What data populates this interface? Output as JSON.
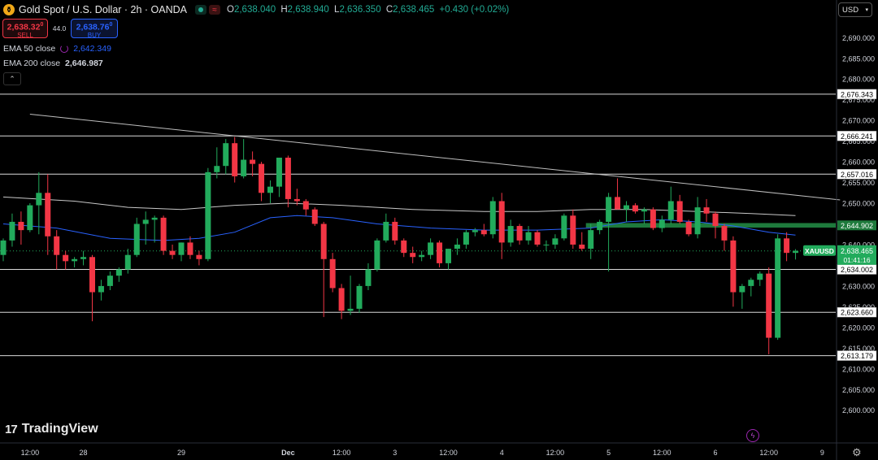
{
  "header": {
    "symbol_title": "Gold Spot / U.S. Dollar · 2h · OANDA",
    "ohlc": [
      {
        "k": "O",
        "v": "2,638.040"
      },
      {
        "k": "H",
        "v": "2,638.940"
      },
      {
        "k": "L",
        "v": "2,636.350"
      },
      {
        "k": "C",
        "v": "2,638.465"
      }
    ],
    "change": "+0.430 (+0.02%)"
  },
  "trade": {
    "sell_price": "2,638.32",
    "sell_sup": "0",
    "sell_label": "SELL",
    "spread": "44.0",
    "buy_price": "2,638.76",
    "buy_sup": "0",
    "buy_label": "BUY"
  },
  "indicators": {
    "ema50_label": "EMA 50 close",
    "ema50_value": "2,642.349",
    "ema200_label": "EMA 200 close",
    "ema200_value": "2,646.987"
  },
  "currency_button": "USD",
  "brand": "TradingView",
  "colors": {
    "up": "#22ab5c",
    "down": "#f23645",
    "ema50": "#2962ff",
    "ema200": "#c8c8c8",
    "resistance_zone": "#1e7a3c",
    "price_tag": "#22ab5c"
  },
  "chart_data": {
    "type": "candlestick",
    "title": "Gold Spot / U.S. Dollar · 2h · OANDA",
    "ylim": [
      2597,
      2693
    ],
    "y_ticks": [
      2600,
      2605,
      2610,
      2615,
      2620,
      2625,
      2630,
      2635,
      2640,
      2645,
      2650,
      2655,
      2660,
      2665,
      2670,
      2675,
      2680,
      2685,
      2690
    ],
    "x_ticks": [
      {
        "label": "12:00",
        "bar": 3
      },
      {
        "label": "28",
        "bar": 9
      },
      {
        "label": "29",
        "bar": 20
      },
      {
        "label": "Dec",
        "bar": 32
      },
      {
        "label": "12:00",
        "bar": 38
      },
      {
        "label": "3",
        "bar": 44
      },
      {
        "label": "12:00",
        "bar": 50
      },
      {
        "label": "4",
        "bar": 56
      },
      {
        "label": "12:00",
        "bar": 62
      },
      {
        "label": "5",
        "bar": 68
      },
      {
        "label": "12:00",
        "bar": 74
      },
      {
        "label": "6",
        "bar": 80
      },
      {
        "label": "12:00",
        "bar": 86
      },
      {
        "label": "9",
        "bar": 92
      }
    ],
    "candles": [
      {
        "o": 2637.5,
        "h": 2641.5,
        "l": 2636.0,
        "c": 2641.0
      },
      {
        "o": 2641.0,
        "h": 2647.5,
        "l": 2639.5,
        "c": 2645.5
      },
      {
        "o": 2645.5,
        "h": 2648.0,
        "l": 2640.0,
        "c": 2643.5
      },
      {
        "o": 2643.5,
        "h": 2650.0,
        "l": 2643.0,
        "c": 2649.5
      },
      {
        "o": 2649.5,
        "h": 2657.5,
        "l": 2642.5,
        "c": 2652.5
      },
      {
        "o": 2652.5,
        "h": 2657.0,
        "l": 2637.5,
        "c": 2642.0
      },
      {
        "o": 2642.0,
        "h": 2643.5,
        "l": 2634.0,
        "c": 2637.5
      },
      {
        "o": 2637.5,
        "h": 2638.5,
        "l": 2634.0,
        "c": 2636.0
      },
      {
        "o": 2636.0,
        "h": 2637.0,
        "l": 2634.5,
        "c": 2636.5
      },
      {
        "o": 2636.5,
        "h": 2638.5,
        "l": 2635.0,
        "c": 2637.0
      },
      {
        "o": 2637.0,
        "h": 2637.5,
        "l": 2621.5,
        "c": 2628.5
      },
      {
        "o": 2628.5,
        "h": 2631.5,
        "l": 2626.5,
        "c": 2630.0
      },
      {
        "o": 2630.0,
        "h": 2633.5,
        "l": 2629.0,
        "c": 2632.5
      },
      {
        "o": 2632.5,
        "h": 2634.5,
        "l": 2631.0,
        "c": 2634.0
      },
      {
        "o": 2634.0,
        "h": 2639.0,
        "l": 2633.0,
        "c": 2637.5
      },
      {
        "o": 2637.5,
        "h": 2646.5,
        "l": 2637.0,
        "c": 2645.0
      },
      {
        "o": 2645.0,
        "h": 2648.0,
        "l": 2640.0,
        "c": 2646.0
      },
      {
        "o": 2646.0,
        "h": 2647.0,
        "l": 2640.5,
        "c": 2646.5
      },
      {
        "o": 2646.5,
        "h": 2647.0,
        "l": 2637.5,
        "c": 2638.5
      },
      {
        "o": 2638.5,
        "h": 2640.0,
        "l": 2636.5,
        "c": 2637.5
      },
      {
        "o": 2637.5,
        "h": 2640.5,
        "l": 2636.0,
        "c": 2640.5
      },
      {
        "o": 2640.5,
        "h": 2642.0,
        "l": 2636.5,
        "c": 2637.5
      },
      {
        "o": 2637.5,
        "h": 2638.5,
        "l": 2635.0,
        "c": 2636.5
      },
      {
        "o": 2636.5,
        "h": 2658.5,
        "l": 2636.0,
        "c": 2657.5
      },
      {
        "o": 2657.5,
        "h": 2663.5,
        "l": 2656.0,
        "c": 2659.0
      },
      {
        "o": 2659.0,
        "h": 2665.5,
        "l": 2657.0,
        "c": 2664.5
      },
      {
        "o": 2664.5,
        "h": 2666.0,
        "l": 2655.0,
        "c": 2656.5
      },
      {
        "o": 2656.5,
        "h": 2665.5,
        "l": 2656.0,
        "c": 2660.5
      },
      {
        "o": 2660.5,
        "h": 2662.5,
        "l": 2656.5,
        "c": 2659.5
      },
      {
        "o": 2659.5,
        "h": 2660.0,
        "l": 2650.5,
        "c": 2652.5
      },
      {
        "o": 2652.5,
        "h": 2655.5,
        "l": 2650.0,
        "c": 2654.0
      },
      {
        "o": 2654.0,
        "h": 2661.0,
        "l": 2651.5,
        "c": 2661.0
      },
      {
        "o": 2661.0,
        "h": 2661.5,
        "l": 2649.0,
        "c": 2651.0
      },
      {
        "o": 2651.0,
        "h": 2653.5,
        "l": 2649.5,
        "c": 2650.5
      },
      {
        "o": 2650.5,
        "h": 2651.0,
        "l": 2647.0,
        "c": 2648.5
      },
      {
        "o": 2648.5,
        "h": 2649.0,
        "l": 2644.5,
        "c": 2645.0
      },
      {
        "o": 2645.0,
        "h": 2645.5,
        "l": 2622.5,
        "c": 2636.5
      },
      {
        "o": 2636.5,
        "h": 2638.0,
        "l": 2628.5,
        "c": 2629.5
      },
      {
        "o": 2629.5,
        "h": 2630.5,
        "l": 2622.0,
        "c": 2624.0
      },
      {
        "o": 2624.0,
        "h": 2632.5,
        "l": 2623.0,
        "c": 2624.5
      },
      {
        "o": 2624.5,
        "h": 2630.5,
        "l": 2623.5,
        "c": 2630.0
      },
      {
        "o": 2630.0,
        "h": 2635.5,
        "l": 2629.0,
        "c": 2634.0
      },
      {
        "o": 2634.0,
        "h": 2641.5,
        "l": 2633.5,
        "c": 2641.0
      },
      {
        "o": 2641.0,
        "h": 2647.5,
        "l": 2640.5,
        "c": 2645.5
      },
      {
        "o": 2645.5,
        "h": 2646.5,
        "l": 2640.0,
        "c": 2641.0
      },
      {
        "o": 2641.0,
        "h": 2641.5,
        "l": 2637.0,
        "c": 2638.0
      },
      {
        "o": 2638.0,
        "h": 2639.5,
        "l": 2635.5,
        "c": 2637.0
      },
      {
        "o": 2637.0,
        "h": 2638.5,
        "l": 2636.0,
        "c": 2637.5
      },
      {
        "o": 2637.5,
        "h": 2641.5,
        "l": 2636.5,
        "c": 2640.5
      },
      {
        "o": 2640.5,
        "h": 2641.0,
        "l": 2634.5,
        "c": 2635.5
      },
      {
        "o": 2635.5,
        "h": 2639.0,
        "l": 2634.0,
        "c": 2639.0
      },
      {
        "o": 2639.0,
        "h": 2641.5,
        "l": 2637.5,
        "c": 2640.0
      },
      {
        "o": 2640.0,
        "h": 2643.5,
        "l": 2639.0,
        "c": 2643.0
      },
      {
        "o": 2643.0,
        "h": 2644.0,
        "l": 2642.0,
        "c": 2643.5
      },
      {
        "o": 2643.5,
        "h": 2645.0,
        "l": 2642.0,
        "c": 2642.5
      },
      {
        "o": 2642.5,
        "h": 2651.5,
        "l": 2641.5,
        "c": 2650.5
      },
      {
        "o": 2650.5,
        "h": 2652.5,
        "l": 2636.5,
        "c": 2640.5
      },
      {
        "o": 2640.5,
        "h": 2646.0,
        "l": 2639.5,
        "c": 2644.5
      },
      {
        "o": 2644.5,
        "h": 2645.0,
        "l": 2640.0,
        "c": 2641.0
      },
      {
        "o": 2641.0,
        "h": 2644.5,
        "l": 2640.0,
        "c": 2643.0
      },
      {
        "o": 2643.0,
        "h": 2643.5,
        "l": 2639.5,
        "c": 2640.0
      },
      {
        "o": 2640.0,
        "h": 2641.0,
        "l": 2638.5,
        "c": 2640.0
      },
      {
        "o": 2640.0,
        "h": 2642.5,
        "l": 2639.0,
        "c": 2641.5
      },
      {
        "o": 2641.5,
        "h": 2647.5,
        "l": 2641.0,
        "c": 2647.0
      },
      {
        "o": 2647.0,
        "h": 2648.5,
        "l": 2639.0,
        "c": 2640.0
      },
      {
        "o": 2640.0,
        "h": 2643.0,
        "l": 2638.5,
        "c": 2639.0
      },
      {
        "o": 2639.0,
        "h": 2645.0,
        "l": 2636.5,
        "c": 2643.5
      },
      {
        "o": 2643.5,
        "h": 2646.0,
        "l": 2642.5,
        "c": 2645.5
      },
      {
        "o": 2645.5,
        "h": 2652.5,
        "l": 2633.5,
        "c": 2651.5
      },
      {
        "o": 2651.5,
        "h": 2656.0,
        "l": 2648.5,
        "c": 2648.5
      },
      {
        "o": 2648.5,
        "h": 2650.5,
        "l": 2645.5,
        "c": 2649.5
      },
      {
        "o": 2649.5,
        "h": 2650.0,
        "l": 2647.5,
        "c": 2648.0
      },
      {
        "o": 2648.0,
        "h": 2649.0,
        "l": 2645.0,
        "c": 2648.5
      },
      {
        "o": 2648.5,
        "h": 2649.0,
        "l": 2643.5,
        "c": 2644.0
      },
      {
        "o": 2644.0,
        "h": 2647.0,
        "l": 2643.0,
        "c": 2646.0
      },
      {
        "o": 2646.0,
        "h": 2654.0,
        "l": 2645.0,
        "c": 2650.5
      },
      {
        "o": 2650.5,
        "h": 2652.0,
        "l": 2645.0,
        "c": 2645.5
      },
      {
        "o": 2645.5,
        "h": 2646.0,
        "l": 2642.0,
        "c": 2642.5
      },
      {
        "o": 2642.5,
        "h": 2651.5,
        "l": 2641.5,
        "c": 2649.0
      },
      {
        "o": 2649.0,
        "h": 2651.0,
        "l": 2645.5,
        "c": 2647.5
      },
      {
        "o": 2647.5,
        "h": 2648.0,
        "l": 2641.5,
        "c": 2644.5
      },
      {
        "o": 2644.5,
        "h": 2645.0,
        "l": 2638.5,
        "c": 2641.0
      },
      {
        "o": 2641.0,
        "h": 2642.0,
        "l": 2625.0,
        "c": 2628.5
      },
      {
        "o": 2628.5,
        "h": 2630.5,
        "l": 2624.5,
        "c": 2630.0
      },
      {
        "o": 2630.0,
        "h": 2632.0,
        "l": 2627.5,
        "c": 2631.5
      },
      {
        "o": 2631.5,
        "h": 2633.5,
        "l": 2630.0,
        "c": 2633.0
      },
      {
        "o": 2633.0,
        "h": 2634.5,
        "l": 2613.5,
        "c": 2617.5
      },
      {
        "o": 2617.5,
        "h": 2642.5,
        "l": 2617.0,
        "c": 2641.5
      },
      {
        "o": 2641.5,
        "h": 2643.0,
        "l": 2636.0,
        "c": 2638.0
      },
      {
        "o": 2638.0,
        "h": 2638.9,
        "l": 2636.4,
        "c": 2638.5
      }
    ],
    "series": [
      {
        "name": "EMA 50 close",
        "color": "#2962ff",
        "points": [
          [
            0,
            2645.0
          ],
          [
            6,
            2644.0
          ],
          [
            12,
            2641.5
          ],
          [
            18,
            2641.0
          ],
          [
            22,
            2641.5
          ],
          [
            26,
            2643.0
          ],
          [
            30,
            2646.5
          ],
          [
            33,
            2647.0
          ],
          [
            37,
            2646.5
          ],
          [
            42,
            2645.0
          ],
          [
            48,
            2644.0
          ],
          [
            54,
            2643.5
          ],
          [
            60,
            2643.5
          ],
          [
            66,
            2644.0
          ],
          [
            70,
            2645.5
          ],
          [
            74,
            2646.0
          ],
          [
            78,
            2645.5
          ],
          [
            82,
            2644.5
          ],
          [
            86,
            2643.0
          ],
          [
            89,
            2642.3
          ]
        ]
      },
      {
        "name": "EMA 200 close",
        "color": "#c8c8c8",
        "points": [
          [
            0,
            2651.5
          ],
          [
            8,
            2650.5
          ],
          [
            14,
            2649.0
          ],
          [
            20,
            2648.5
          ],
          [
            26,
            2649.5
          ],
          [
            32,
            2650.0
          ],
          [
            38,
            2649.5
          ],
          [
            46,
            2648.5
          ],
          [
            54,
            2648.0
          ],
          [
            60,
            2648.0
          ],
          [
            66,
            2648.5
          ],
          [
            72,
            2648.5
          ],
          [
            78,
            2648.0
          ],
          [
            84,
            2647.5
          ],
          [
            89,
            2647.0
          ]
        ]
      }
    ],
    "horizontal_levels": [
      "2,676.343",
      "2,666.241",
      "2,657.016",
      "2,634.002",
      "2,623.660",
      "2,613.179"
    ],
    "resistance_zone": {
      "label": "2,644.902",
      "from": 2644.1,
      "to": 2645.2,
      "start_bar": 66
    },
    "trendline": {
      "from": [
        3,
        2671.5
      ],
      "to": [
        94,
        2650.8
      ]
    },
    "last_price": {
      "symbol": "XAUUSD",
      "price": "2,638.465",
      "countdown": "01:41:16"
    }
  }
}
